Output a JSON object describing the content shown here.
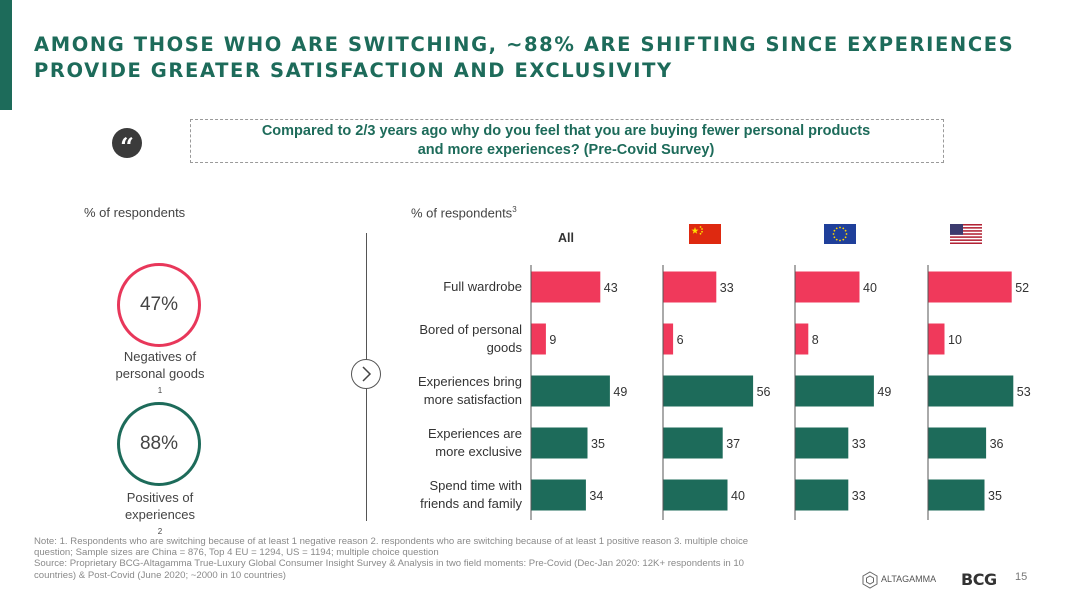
{
  "slide": {
    "title_line1": "AMONG THOSE WHO ARE SWITCHING, ~88% ARE SHIFTING SINCE EXPERIENCES",
    "title_line2": "PROVIDE GREATER SATISFACTION AND EXCLUSIVITY",
    "quote_mark": "“",
    "question_line1": "Compared to 2/3 years ago why do you feel that you are buying fewer personal products",
    "question_line2": "and more experiences? (Pre-Covid Survey)",
    "left_label": "% of respondents",
    "right_label": "% of respondents",
    "right_label_sup": "3",
    "page_number": "15"
  },
  "summary": {
    "negatives": {
      "value": "47%",
      "caption_line1": "Negatives of",
      "caption_line2": "personal goods",
      "sup": "1",
      "color": "#e8375a"
    },
    "positives": {
      "value": "88%",
      "caption_line1": "Positives of",
      "caption_line2": "experiences",
      "sup": "2",
      "color": "#1d6b5a"
    }
  },
  "notes": {
    "line1": "Note: 1. Respondents who are switching because of at least 1 negative reason 2. respondents who are switching because of at least 1 positive reason 3. multiple choice",
    "line2": "question; Sample sizes are China = 876, Top 4 EU = 1294, US = 1194; multiple choice question",
    "line3": "Source: Proprietary BCG-Altagamma True-Luxury Global Consumer Insight Survey & Analysis in two field moments: Pre-Covid (Dec-Jan 2020: 12K+ respondents in 10",
    "line4": "countries) & Post-Covid (June 2020; ~2000 in 10 countries)"
  },
  "logos": {
    "altagamma": "ALTAGAMMA",
    "bcg": "BCG"
  },
  "chart_data": {
    "type": "bar",
    "orientation": "horizontal",
    "categories": [
      "Full wardrobe",
      "Bored of personal goods",
      "Experiences bring more satisfaction",
      "Experiences are more exclusive",
      "Spend time with friends and family"
    ],
    "category_lines": [
      [
        "Full wardrobe"
      ],
      [
        "Bored of personal",
        "goods"
      ],
      [
        "Experiences bring",
        "more satisfaction"
      ],
      [
        "Experiences are",
        "more exclusive"
      ],
      [
        "Spend time with",
        "friends and family"
      ]
    ],
    "series": [
      {
        "name": "All",
        "values": [
          43,
          9,
          49,
          35,
          34
        ]
      },
      {
        "values": [
          33,
          6,
          56,
          37,
          40
        ]
      },
      {
        "values": [
          40,
          8,
          49,
          33,
          33
        ]
      },
      {
        "values": [
          52,
          10,
          53,
          36,
          35
        ]
      }
    ],
    "series_flags": [
      "",
      "china-flag",
      "eu-flag",
      "us-flag"
    ],
    "bar_colors": [
      "#f0395b",
      "#f0395b",
      "#1d6b5a",
      "#1d6b5a",
      "#1d6b5a"
    ],
    "colors": {
      "negative": "#f0395b",
      "positive": "#1d6b5a"
    }
  }
}
